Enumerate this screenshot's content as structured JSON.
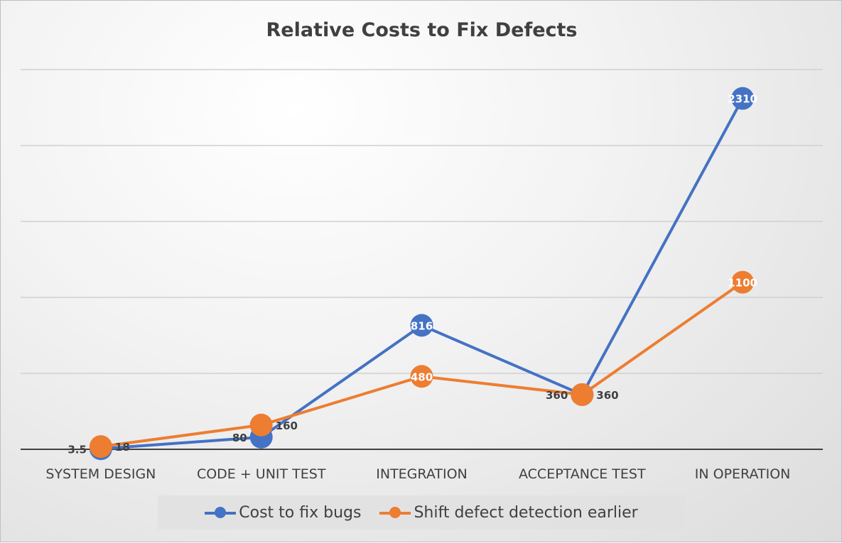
{
  "chart_data": {
    "type": "line",
    "title": "Relative Costs to Fix Defects",
    "categories": [
      "SYSTEM DESIGN",
      "CODE + UNIT TEST",
      "INTEGRATION",
      "ACCEPTANCE TEST",
      "IN OPERATION"
    ],
    "series": [
      {
        "name": "Cost to fix bugs",
        "color": "#4472c4",
        "values": [
          3.5,
          80,
          816,
          360,
          2310
        ],
        "labels": [
          "3.5",
          "80",
          "816",
          "360",
          "2310"
        ]
      },
      {
        "name": "Shift defect detection earlier",
        "color": "#ed7d31",
        "values": [
          18,
          160,
          480,
          360,
          1100
        ],
        "labels": [
          "18",
          "160",
          "480",
          "360",
          "1100"
        ]
      }
    ],
    "ylim": [
      0,
      2500
    ],
    "ygrid_step": 500,
    "grid": true,
    "y_tick_labels_shown": false,
    "legend": "bottom"
  }
}
